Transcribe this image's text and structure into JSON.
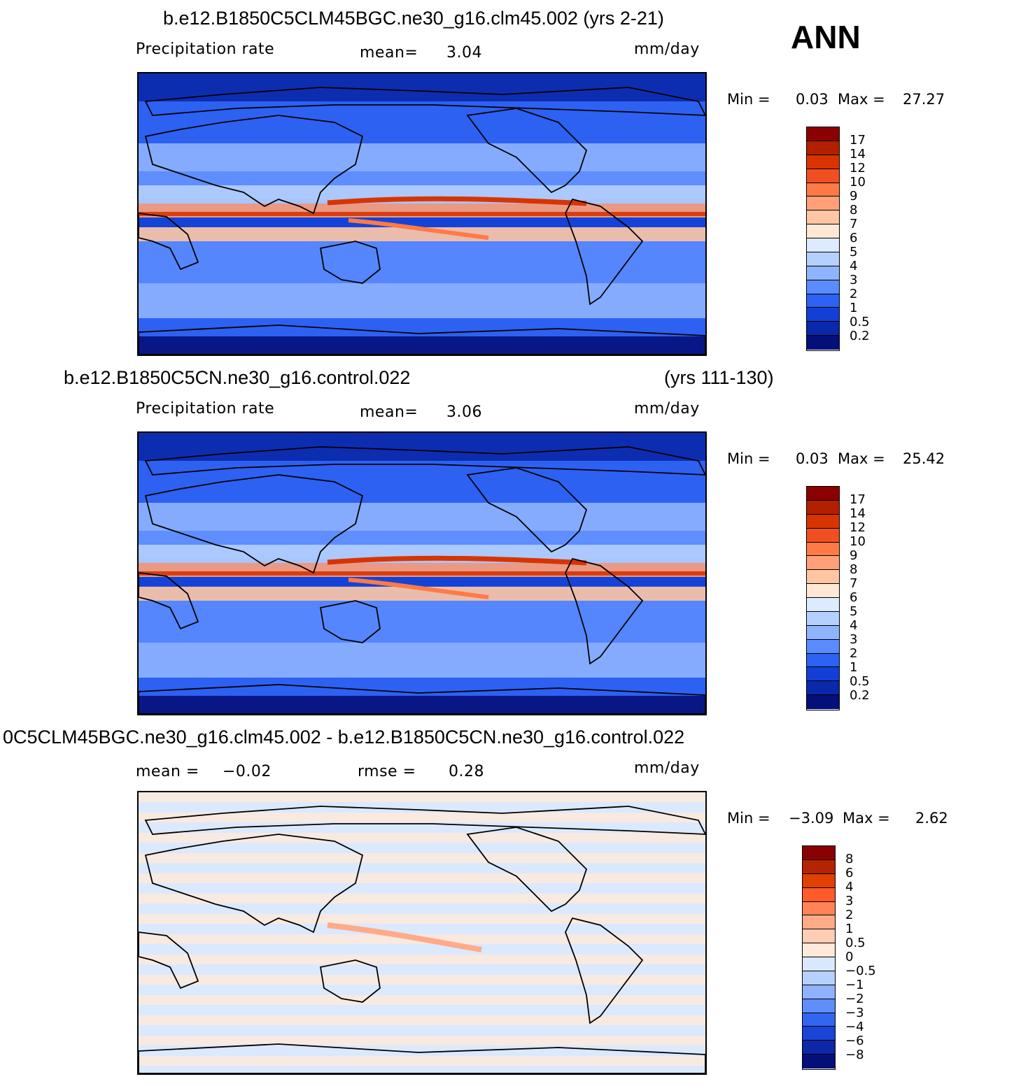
{
  "season_label": "ANN",
  "colors": {
    "outline": "#000000",
    "background": "#ffffff"
  },
  "panels": [
    {
      "title_left": "b.e12.B1850C5CLM45BGC.ne30_g16.clm45.002 (yrs 2-21)",
      "title_right": "",
      "variable": "Precipitation  rate",
      "stat1_label": "mean=",
      "stat1_value": "3.04",
      "stat2_label": "",
      "stat2_value": "",
      "units": "mm/day",
      "min_label": "Min  =",
      "min_value": "0.03",
      "max_label": "Max  =",
      "max_value": "27.27"
    },
    {
      "title_left": "b.e12.B1850C5CN.ne30_g16.control.022",
      "title_right": "(yrs 111-130)",
      "variable": "Precipitation  rate",
      "stat1_label": "mean=",
      "stat1_value": "3.06",
      "stat2_label": "",
      "stat2_value": "",
      "units": "mm/day",
      "min_label": "Min  =",
      "min_value": "0.03",
      "max_label": "Max  =",
      "max_value": "25.42"
    },
    {
      "title_left": "0C5CLM45BGC.ne30_g16.clm45.002 - b.e12.B1850C5CN.ne30_g16.control.022",
      "title_right": "",
      "variable": "",
      "stat1_label": "mean  =",
      "stat1_value": "−0.02",
      "stat2_label": "rmse  =",
      "stat2_value": "0.28",
      "units": "mm/day",
      "min_label": "Min  =",
      "min_value": "−3.09",
      "max_label": "Max  =",
      "max_value": "2.62"
    }
  ],
  "chart_data": [
    {
      "type": "heatmap",
      "title": "b.e12.B1850C5CLM45BGC.ne30_g16.clm45.002 (yrs 2-21)",
      "variable": "Precipitation  rate",
      "units": "mm/day",
      "mean": 3.04,
      "min": 0.03,
      "max": 27.27,
      "colorbar_levels": [
        "17",
        "14",
        "12",
        "10",
        "9",
        "8",
        "7",
        "6",
        "5",
        "4",
        "3",
        "2",
        "1",
        "0.5",
        "0.2"
      ],
      "colorbar_colors": [
        "#8b0000",
        "#b22000",
        "#d93400",
        "#f05020",
        "#ff7a45",
        "#ffa078",
        "#ffc6a4",
        "#ffe8d6",
        "#ddebff",
        "#b5d0ff",
        "#8fb4ff",
        "#5a8bff",
        "#2d62f2",
        "#1240d6",
        "#0a28aa",
        "#050f7a"
      ]
    },
    {
      "type": "heatmap",
      "title": "b.e12.B1850C5CN.ne30_g16.control.022 (yrs 111-130)",
      "variable": "Precipitation  rate",
      "units": "mm/day",
      "mean": 3.06,
      "min": 0.03,
      "max": 25.42,
      "colorbar_levels": [
        "17",
        "14",
        "12",
        "10",
        "9",
        "8",
        "7",
        "6",
        "5",
        "4",
        "3",
        "2",
        "1",
        "0.5",
        "0.2"
      ],
      "colorbar_colors": [
        "#8b0000",
        "#b22000",
        "#d93400",
        "#f05020",
        "#ff7a45",
        "#ffa078",
        "#ffc6a4",
        "#ffe8d6",
        "#ddebff",
        "#b5d0ff",
        "#8fb4ff",
        "#5a8bff",
        "#2d62f2",
        "#1240d6",
        "#0a28aa",
        "#050f7a"
      ]
    },
    {
      "type": "heatmap",
      "title": "0C5CLM45BGC.ne30_g16.clm45.002 - b.e12.B1850C5CN.ne30_g16.control.022",
      "units": "mm/day",
      "mean": -0.02,
      "rmse": 0.28,
      "min": -3.09,
      "max": 2.62,
      "colorbar_levels": [
        "8",
        "6",
        "4",
        "3",
        "2",
        "1",
        "0.5",
        "0",
        "−0.5",
        "−1",
        "−2",
        "−3",
        "−4",
        "−6",
        "−8"
      ],
      "colorbar_colors": [
        "#8b0000",
        "#b52400",
        "#e04000",
        "#ff5a2a",
        "#ff8356",
        "#ffab88",
        "#ffcdb4",
        "#ffe9d9",
        "#dbe9ff",
        "#b7d1ff",
        "#8eb2ff",
        "#5f8dfa",
        "#3366f0",
        "#1a44d8",
        "#0c27a8",
        "#050f7a"
      ]
    }
  ]
}
